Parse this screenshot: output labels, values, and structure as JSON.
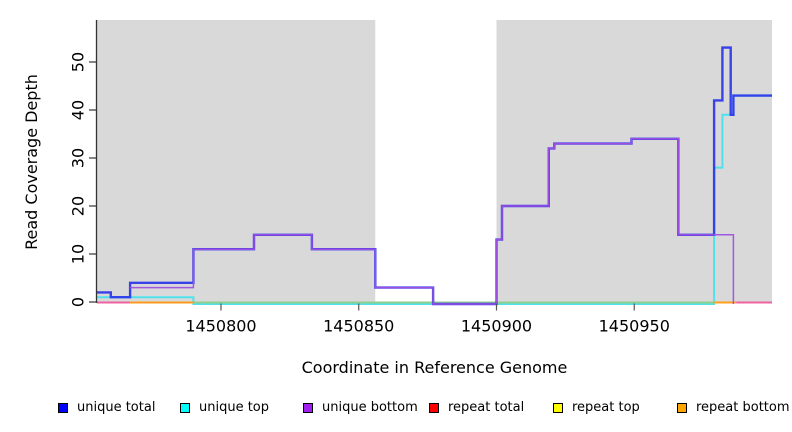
{
  "chart_data": {
    "type": "step-line",
    "title": "",
    "xlabel": "Coordinate in Reference Genome",
    "ylabel": "Read Coverage Depth",
    "xlim": [
      1450755,
      1451000
    ],
    "ylim": [
      0,
      58.8
    ],
    "grid": false,
    "x_ticks": [
      {
        "value": 1450800,
        "label": "1450800"
      },
      {
        "value": 1450850,
        "label": "1450850"
      },
      {
        "value": 1450900,
        "label": "1450900"
      },
      {
        "value": 1450950,
        "label": "1450950"
      }
    ],
    "y_ticks": [
      {
        "value": 0,
        "label": "0"
      },
      {
        "value": 10,
        "label": "10"
      },
      {
        "value": 20,
        "label": "20"
      },
      {
        "value": 30,
        "label": "30"
      },
      {
        "value": 40,
        "label": "40"
      },
      {
        "value": 50,
        "label": "50"
      }
    ],
    "shaded_regions": [
      {
        "name": "repeat-region-left",
        "from": 1450755,
        "to": 1450856,
        "color": "#d9d9d9"
      },
      {
        "name": "repeat-region-right",
        "from": 1450900,
        "to": 1451000,
        "color": "#d9d9d9"
      }
    ],
    "series": [
      {
        "name": "unique top",
        "plot_color": "#4fe2ec",
        "line_width": 2,
        "steps": [
          [
            1450755,
            1
          ],
          [
            1450790,
            0
          ],
          [
            1450979,
            28
          ],
          [
            1450982,
            39
          ],
          [
            1450986,
            43
          ]
        ],
        "extend_to_end": true
      },
      {
        "name": "unique total",
        "plot_color": "#2b35ea",
        "line_width": 2.4,
        "steps": [
          [
            1450755,
            2
          ],
          [
            1450760,
            1
          ],
          [
            1450767,
            4
          ],
          [
            1450790,
            11
          ],
          [
            1450812,
            14
          ],
          [
            1450833,
            11
          ],
          [
            1450856,
            3
          ],
          [
            1450877,
            0
          ],
          [
            1450900,
            13
          ],
          [
            1450902,
            20
          ],
          [
            1450919,
            32
          ],
          [
            1450921,
            33
          ],
          [
            1450949,
            34
          ],
          [
            1450966,
            14
          ],
          [
            1450979,
            42
          ],
          [
            1450982,
            53
          ],
          [
            1450985,
            39
          ],
          [
            1450986,
            43
          ]
        ],
        "extend_to_end": true
      },
      {
        "name": "unique bottom",
        "plot_color": "#a04fe0",
        "line_width": 1.5,
        "steps": [
          [
            1450767,
            3
          ],
          [
            1450790,
            11
          ],
          [
            1450812,
            14
          ],
          [
            1450833,
            11
          ],
          [
            1450856,
            3
          ],
          [
            1450877,
            0
          ],
          [
            1450900,
            13
          ],
          [
            1450902,
            20
          ],
          [
            1450919,
            32
          ],
          [
            1450921,
            33
          ],
          [
            1450949,
            34
          ],
          [
            1450966,
            14
          ],
          [
            1450986,
            0
          ]
        ],
        "extend_to_end": false
      }
    ],
    "baseline_segments": [
      {
        "name": "repeat-total-line-left",
        "color": "#ef62a0",
        "from": 1450755,
        "to": 1450767,
        "value": 0
      },
      {
        "name": "repeat-bottom-line-left",
        "color": "#ff9a1f",
        "from": 1450767,
        "to": 1450790,
        "value": 0
      },
      {
        "name": "repeat-top-line-mid",
        "color": "#8ecf8e",
        "from": 1450790,
        "to": 1450979,
        "value": 0
      },
      {
        "name": "repeat-bottom-line-right",
        "color": "#ffa01d",
        "from": 1450979,
        "to": 1450987,
        "value": 0
      },
      {
        "name": "repeat-total-line-right",
        "color": "#ef62a0",
        "from": 1450987,
        "to": 1451000,
        "value": 0
      }
    ],
    "legend_position": "bottom"
  },
  "legend": {
    "items": [
      {
        "label": "unique total",
        "color": "#0000ff"
      },
      {
        "label": "unique top",
        "color": "#00ffff"
      },
      {
        "label": "unique bottom",
        "color": "#a020f0"
      },
      {
        "label": "repeat total",
        "color": "#ff0000"
      },
      {
        "label": "repeat top",
        "color": "#ffff00"
      },
      {
        "label": "repeat bottom",
        "color": "#ffa500"
      }
    ]
  }
}
